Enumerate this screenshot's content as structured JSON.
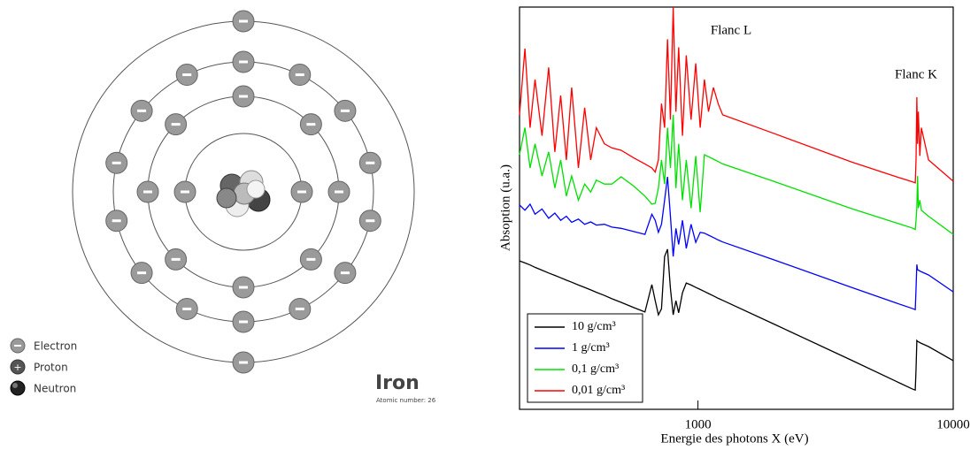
{
  "diagram": {
    "title": "Iron",
    "subtitle": "Atomic number: 26",
    "legend": [
      "Electron",
      "Proton",
      "Neutron"
    ]
  },
  "chart_data": {
    "type": "line",
    "xlabel": "Energie des photons X (eV)",
    "ylabel": "Absoption (u.a.)",
    "annotations": [
      "Flanc L",
      "Flanc K"
    ],
    "log_x": true,
    "legend": "lower left",
    "xlim": [
      200,
      10000
    ],
    "xticks": [
      1000,
      10000
    ],
    "ylim": [
      0,
      100
    ],
    "x": [
      200,
      210,
      220,
      230,
      245,
      260,
      275,
      290,
      305,
      320,
      340,
      360,
      380,
      400,
      430,
      460,
      500,
      560,
      620,
      660,
      680,
      700,
      720,
      740,
      760,
      780,
      800,
      820,
      840,
      870,
      900,
      940,
      980,
      1020,
      1060,
      1100,
      1150,
      1200,
      1250,
      2000,
      4000,
      6000,
      6900,
      7100,
      7150,
      7200,
      7250,
      7300,
      7400,
      7500,
      8000,
      10000
    ],
    "series": [
      {
        "name": "10 g/cm³",
        "color": "#000000",
        "values": [
          36.9,
          36.4,
          35.9,
          35.3,
          34.6,
          33.9,
          33.3,
          32.7,
          32.1,
          31.6,
          30.9,
          30.3,
          29.7,
          29.1,
          28.3,
          27.5,
          26.6,
          25.3,
          24.2,
          31.0,
          27,
          23.5,
          25,
          38,
          39.8,
          30,
          23.5,
          27,
          24,
          29,
          31.4,
          30.9,
          30.3,
          29.8,
          29.3,
          28.8,
          28.2,
          27.6,
          27.1,
          21.1,
          12.2,
          6.9,
          5.1,
          4.8,
          10,
          17.1,
          16.9,
          16.8,
          16.6,
          16.4,
          15.6,
          12.1
        ]
      },
      {
        "name": "1 g/cm³",
        "color": "#0000ff",
        "values": [
          50.8,
          49.5,
          51,
          48.5,
          49.8,
          47.5,
          48.8,
          47,
          48,
          46.5,
          47.3,
          46,
          46.6,
          45.8,
          46,
          45.3,
          45,
          44.2,
          43.5,
          48.5,
          47,
          44,
          46,
          52,
          57.8,
          48,
          38,
          45,
          41,
          47,
          40,
          46,
          41.5,
          44,
          43.8,
          43.3,
          42.7,
          42.1,
          41.6,
          37.1,
          30.3,
          26.4,
          25.1,
          24.8,
          30,
          36,
          34.7,
          34.6,
          34.4,
          34.2,
          33.4,
          29.2
        ]
      },
      {
        "name": "0,1 g/cm³",
        "color": "#00e000",
        "values": [
          63.3,
          70,
          60,
          66,
          58,
          64,
          55,
          62,
          53,
          58,
          52,
          56,
          54,
          57,
          56,
          56,
          57.8,
          55.5,
          53,
          51,
          51.2,
          55,
          62,
          56,
          70,
          60,
          73.2,
          55,
          66,
          52,
          62,
          50,
          63,
          49,
          63.3,
          62.8,
          62.2,
          61.6,
          61,
          56.6,
          49.9,
          46.3,
          45.1,
          44.7,
          47,
          50.1,
          58,
          50,
          52,
          49.5,
          48,
          43.5
        ]
      },
      {
        "name": "0,01 g/cm³",
        "color": "#ff0000",
        "values": [
          73.2,
          89.7,
          70,
          82,
          68,
          85,
          64,
          78,
          62,
          80,
          60,
          75,
          62,
          70,
          66,
          65,
          64.4,
          62.5,
          61,
          60,
          59,
          62,
          76,
          70,
          92,
          72,
          100,
          74,
          90,
          68,
          88,
          72,
          86,
          70,
          82,
          74,
          80,
          76,
          73.2,
          68.5,
          61.5,
          57.8,
          56.6,
          56.3,
          62,
          77.6,
          66,
          74,
          63,
          70,
          62,
          56.7
        ]
      }
    ]
  }
}
